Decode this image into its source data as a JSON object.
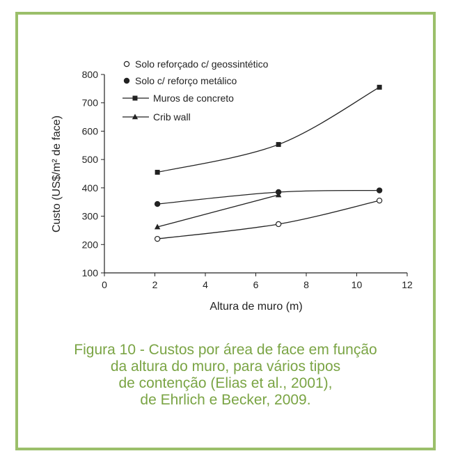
{
  "chart_data": {
    "type": "line",
    "xlabel": "Altura de muro (m)",
    "ylabel": "Custo (US$/m² de face)",
    "xlim": [
      0,
      12
    ],
    "ylim": [
      100,
      800
    ],
    "xticks": [
      0,
      2,
      4,
      6,
      8,
      10,
      12
    ],
    "yticks": [
      100,
      200,
      300,
      400,
      500,
      600,
      700,
      800
    ],
    "grid": false,
    "legend_position": "top-left",
    "series": [
      {
        "name": "Solo reforçado c/ geossintético",
        "marker": "open-circle",
        "x": [
          2.1,
          6.9,
          10.9
        ],
        "y": [
          220,
          272,
          355
        ]
      },
      {
        "name": "Solo c/ reforço metálico",
        "marker": "filled-circle",
        "x": [
          2.1,
          6.9,
          10.9
        ],
        "y": [
          343,
          385,
          391
        ]
      },
      {
        "name": "Muros de concreto",
        "marker": "square",
        "x": [
          2.1,
          6.9,
          10.9
        ],
        "y": [
          455,
          553,
          755
        ]
      },
      {
        "name": "Crib wall",
        "marker": "triangle",
        "x": [
          2.1,
          6.9
        ],
        "y": [
          262,
          375
        ]
      }
    ]
  },
  "caption": {
    "line1": "Figura 10 - Custos por área de face em função",
    "line2": "da altura do muro, para vários tipos",
    "line3": "de contenção (Elias et   al., 2001),",
    "line4": "de Ehrlich e Becker, 2009."
  },
  "colors": {
    "border": "#9bbf6a",
    "caption": "#7aa444",
    "ink": "#222222"
  }
}
